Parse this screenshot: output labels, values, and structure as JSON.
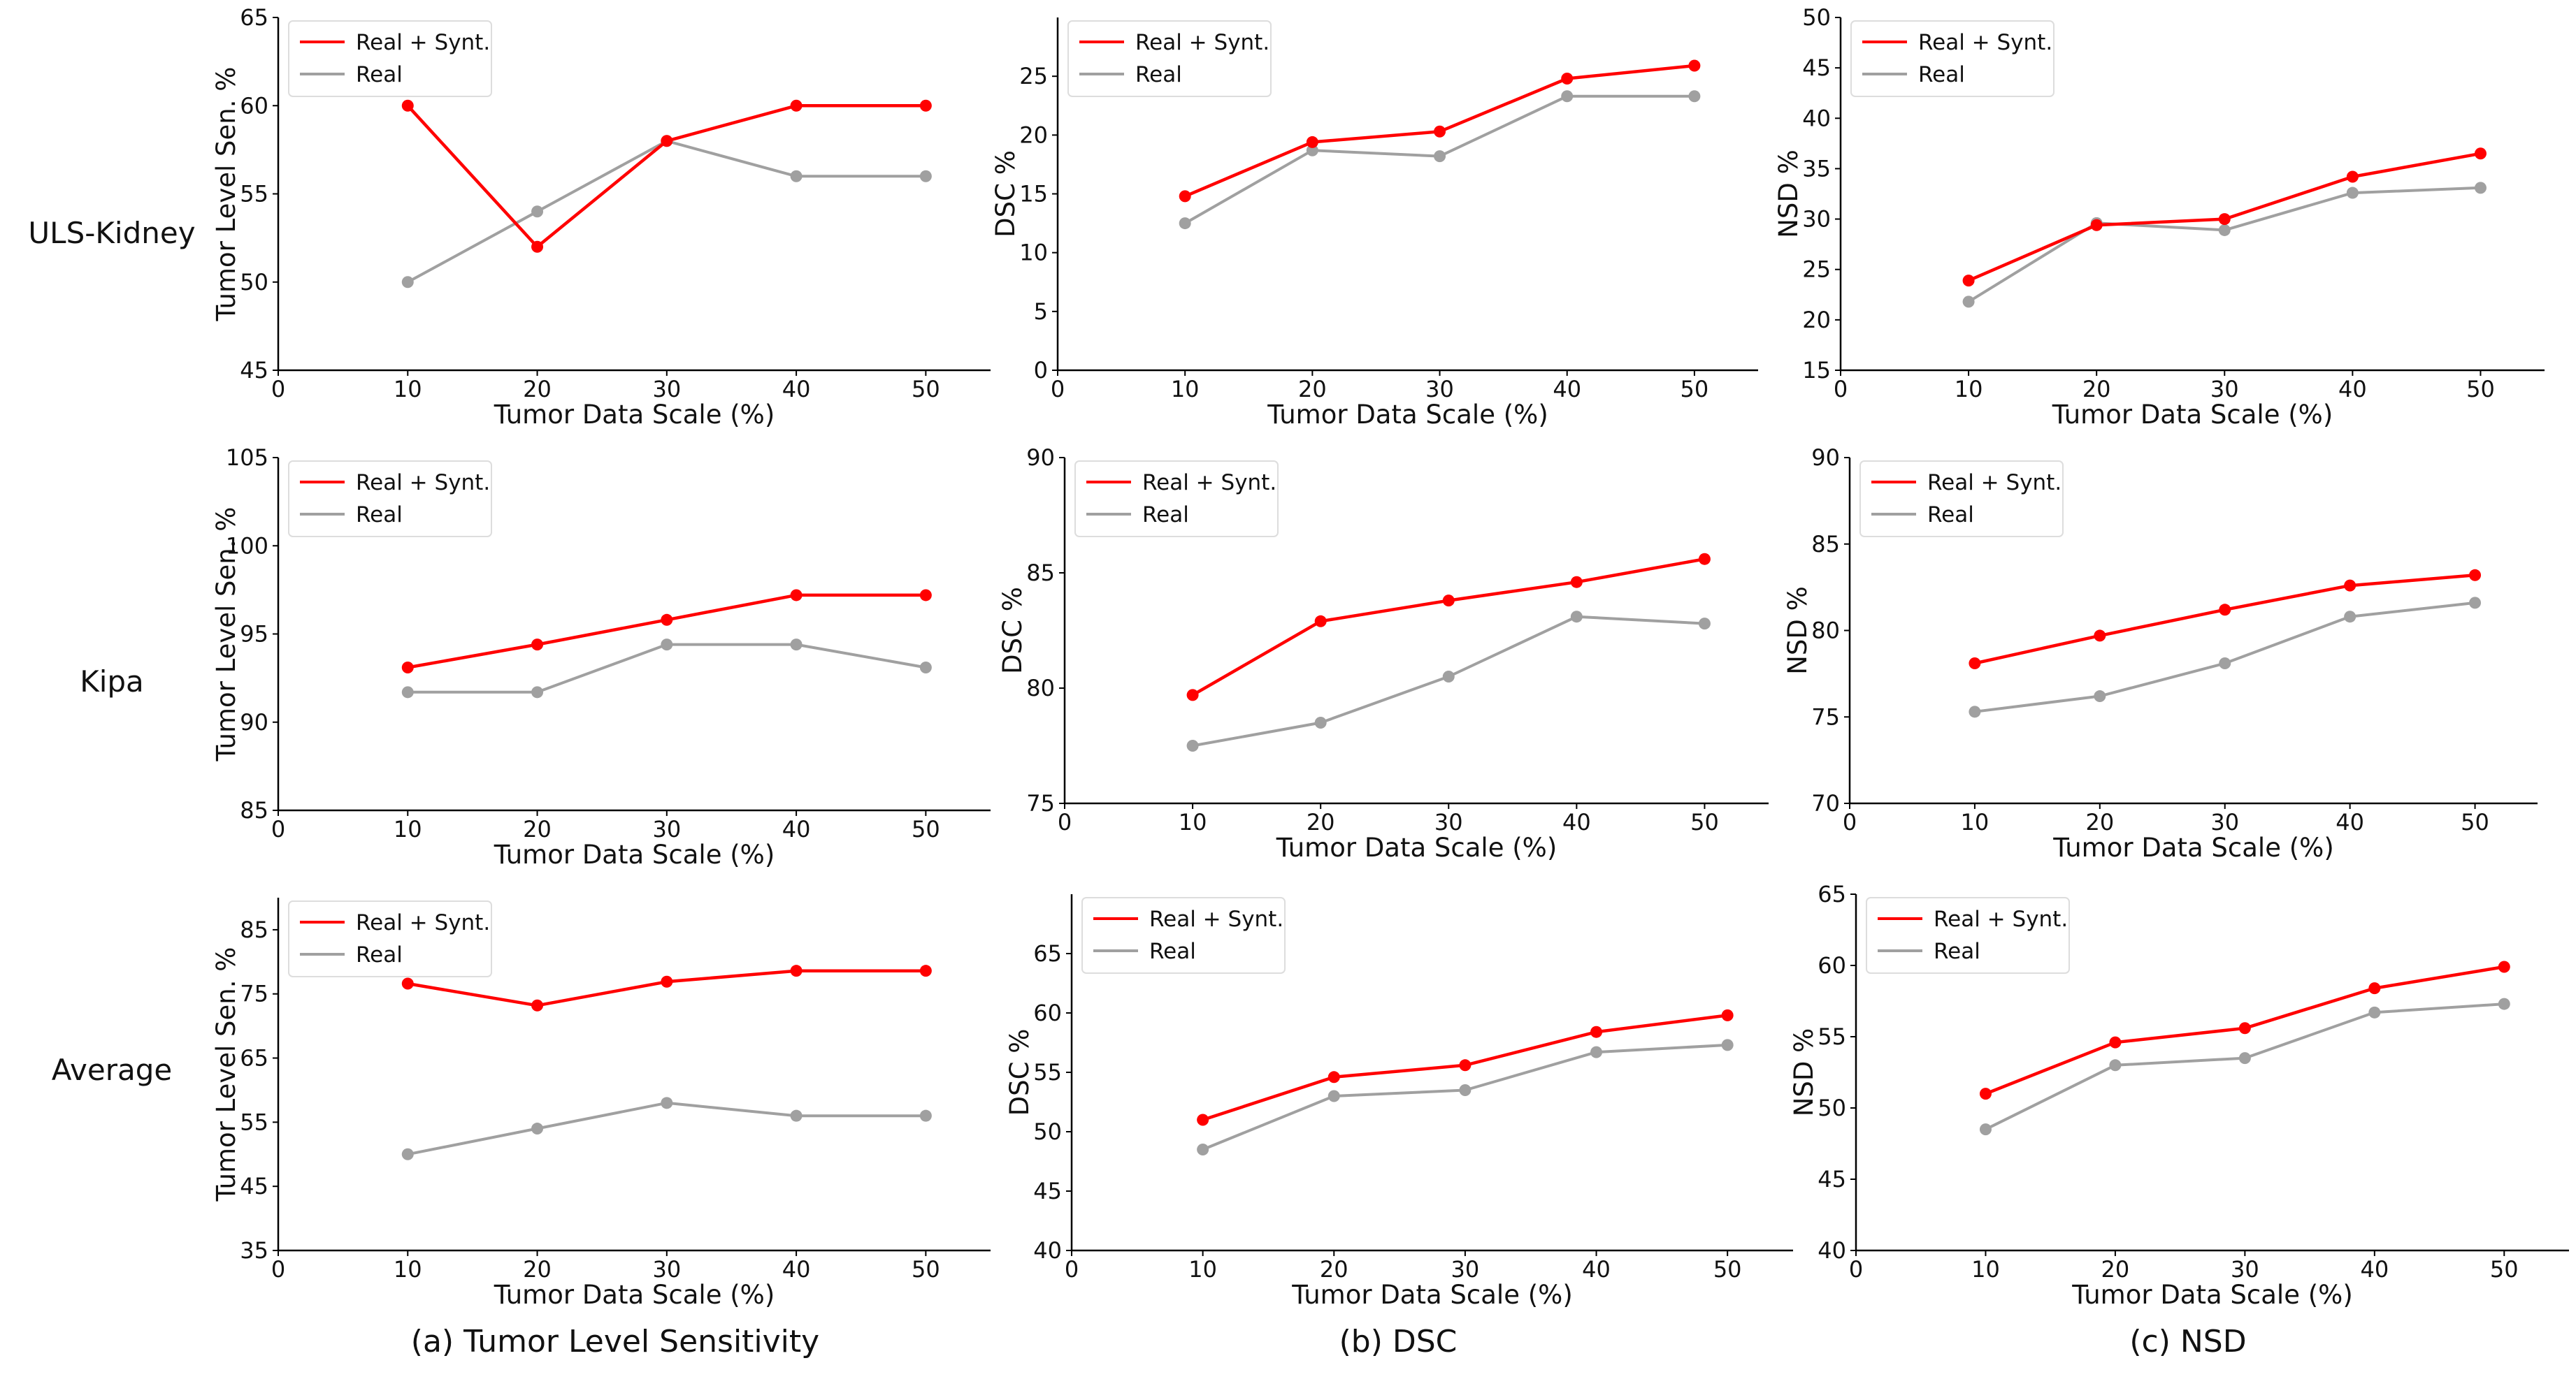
{
  "row_labels": [
    "ULS-Kidney",
    "Kipa",
    "Average"
  ],
  "column_captions": [
    "(a) Tumor Level Sensitivity",
    "(b) DSC",
    "(c) NSD"
  ],
  "colors": {
    "synt": "#ff0000",
    "real": "#a0a0a0",
    "axis": "#000000"
  },
  "chart_data": [
    {
      "type": "line",
      "xlabel": "Tumor Data Scale (%)",
      "ylabel": "Tumor Level Sen. %",
      "x": [
        10,
        20,
        30,
        40,
        50
      ],
      "xlim": [
        0,
        55
      ],
      "xticks": [
        0,
        10,
        20,
        30,
        40,
        50
      ],
      "ylim": [
        45,
        65
      ],
      "yticks": [
        45,
        50,
        55,
        60,
        65
      ],
      "legend": "top-left",
      "series": [
        {
          "name": "Real + Synt.",
          "values": [
            60,
            52,
            58,
            60,
            60
          ]
        },
        {
          "name": "Real",
          "values": [
            50,
            54,
            58,
            56,
            56
          ]
        }
      ]
    },
    {
      "type": "line",
      "xlabel": "Tumor Data Scale (%)",
      "ylabel": "DSC %",
      "x": [
        10,
        20,
        30,
        40,
        50
      ],
      "xlim": [
        0,
        55
      ],
      "xticks": [
        0,
        10,
        20,
        30,
        40,
        50
      ],
      "ylim": [
        0,
        30
      ],
      "yticks": [
        0,
        5,
        10,
        15,
        20,
        25
      ],
      "legend": "top-left",
      "series": [
        {
          "name": "Real + Synt.",
          "values": [
            14.8,
            19.4,
            20.3,
            24.8,
            25.9
          ]
        },
        {
          "name": "Real",
          "values": [
            12.5,
            18.7,
            18.2,
            23.3,
            23.3
          ]
        }
      ]
    },
    {
      "type": "line",
      "xlabel": "Tumor Data Scale (%)",
      "ylabel": "NSD %",
      "x": [
        10,
        20,
        30,
        40,
        50
      ],
      "xlim": [
        0,
        55
      ],
      "xticks": [
        0,
        10,
        20,
        30,
        40,
        50
      ],
      "ylim": [
        15,
        50
      ],
      "yticks": [
        15,
        20,
        25,
        30,
        35,
        40,
        45,
        50
      ],
      "legend": "top-left",
      "series": [
        {
          "name": "Real + Synt.",
          "values": [
            23.9,
            29.4,
            30.0,
            34.2,
            36.5
          ]
        },
        {
          "name": "Real",
          "values": [
            21.8,
            29.6,
            28.9,
            32.6,
            33.1
          ]
        }
      ]
    },
    {
      "type": "line",
      "xlabel": "Tumor Data Scale (%)",
      "ylabel": "Tumor Level Sen. %",
      "x": [
        10,
        20,
        30,
        40,
        50
      ],
      "xlim": [
        0,
        55
      ],
      "xticks": [
        0,
        10,
        20,
        30,
        40,
        50
      ],
      "ylim": [
        85,
        105
      ],
      "yticks": [
        85,
        90,
        95,
        100,
        105
      ],
      "legend": "top-left",
      "series": [
        {
          "name": "Real + Synt.",
          "values": [
            93.1,
            94.4,
            95.8,
            97.2,
            97.2
          ]
        },
        {
          "name": "Real",
          "values": [
            91.7,
            91.7,
            94.4,
            94.4,
            93.1
          ]
        }
      ]
    },
    {
      "type": "line",
      "xlabel": "Tumor Data Scale (%)",
      "ylabel": "DSC %",
      "x": [
        10,
        20,
        30,
        40,
        50
      ],
      "xlim": [
        0,
        55
      ],
      "xticks": [
        0,
        10,
        20,
        30,
        40,
        50
      ],
      "ylim": [
        75,
        90
      ],
      "yticks": [
        75,
        80,
        85,
        90
      ],
      "legend": "top-left",
      "series": [
        {
          "name": "Real + Synt.",
          "values": [
            79.7,
            82.9,
            83.8,
            84.6,
            85.6
          ]
        },
        {
          "name": "Real",
          "values": [
            77.5,
            78.5,
            80.5,
            83.1,
            82.8
          ]
        }
      ]
    },
    {
      "type": "line",
      "xlabel": "Tumor Data Scale (%)",
      "ylabel": "NSD %",
      "x": [
        10,
        20,
        30,
        40,
        50
      ],
      "xlim": [
        0,
        55
      ],
      "xticks": [
        0,
        10,
        20,
        30,
        40,
        50
      ],
      "ylim": [
        70,
        90
      ],
      "yticks": [
        70,
        75,
        80,
        85,
        90
      ],
      "legend": "top-left",
      "series": [
        {
          "name": "Real + Synt.",
          "values": [
            78.1,
            79.7,
            81.2,
            82.6,
            83.2
          ]
        },
        {
          "name": "Real",
          "values": [
            75.3,
            76.2,
            78.1,
            80.8,
            81.6
          ]
        }
      ]
    },
    {
      "type": "line",
      "xlabel": "Tumor Data Scale (%)",
      "ylabel": "Tumor Level Sen. %",
      "x": [
        10,
        20,
        30,
        40,
        50
      ],
      "xlim": [
        0,
        55
      ],
      "xticks": [
        0,
        10,
        20,
        30,
        40,
        50
      ],
      "ylim": [
        35,
        90
      ],
      "yticks": [
        35,
        45,
        55,
        65,
        75,
        85
      ],
      "legend": "top-left",
      "series": [
        {
          "name": "Real + Synt.",
          "values": [
            76.6,
            73.2,
            76.9,
            78.6,
            78.6
          ]
        },
        {
          "name": "Real",
          "values": [
            50,
            54,
            58,
            56,
            56
          ]
        }
      ]
    },
    {
      "type": "line",
      "xlabel": "Tumor Data Scale (%)",
      "ylabel": "DSC %",
      "x": [
        10,
        20,
        30,
        40,
        50
      ],
      "xlim": [
        0,
        55
      ],
      "xticks": [
        0,
        10,
        20,
        30,
        40,
        50
      ],
      "ylim": [
        40,
        70
      ],
      "yticks": [
        40,
        45,
        50,
        55,
        60,
        65
      ],
      "legend": "top-left",
      "series": [
        {
          "name": "Real + Synt.",
          "values": [
            51.0,
            54.6,
            55.6,
            58.4,
            59.8
          ]
        },
        {
          "name": "Real",
          "values": [
            48.5,
            53.0,
            53.5,
            56.7,
            57.3
          ]
        }
      ]
    },
    {
      "type": "line",
      "xlabel": "Tumor Data Scale (%)",
      "ylabel": "NSD %",
      "x": [
        10,
        20,
        30,
        40,
        50
      ],
      "xlim": [
        0,
        55
      ],
      "xticks": [
        0,
        10,
        20,
        30,
        40,
        50
      ],
      "ylim": [
        40,
        65
      ],
      "yticks": [
        40,
        45,
        50,
        55,
        60,
        65
      ],
      "legend": "top-left",
      "series": [
        {
          "name": "Real + Synt.",
          "values": [
            51.0,
            54.6,
            55.6,
            58.4,
            59.9
          ]
        },
        {
          "name": "Real",
          "values": [
            48.5,
            53.0,
            53.5,
            56.7,
            57.3
          ]
        }
      ]
    }
  ]
}
